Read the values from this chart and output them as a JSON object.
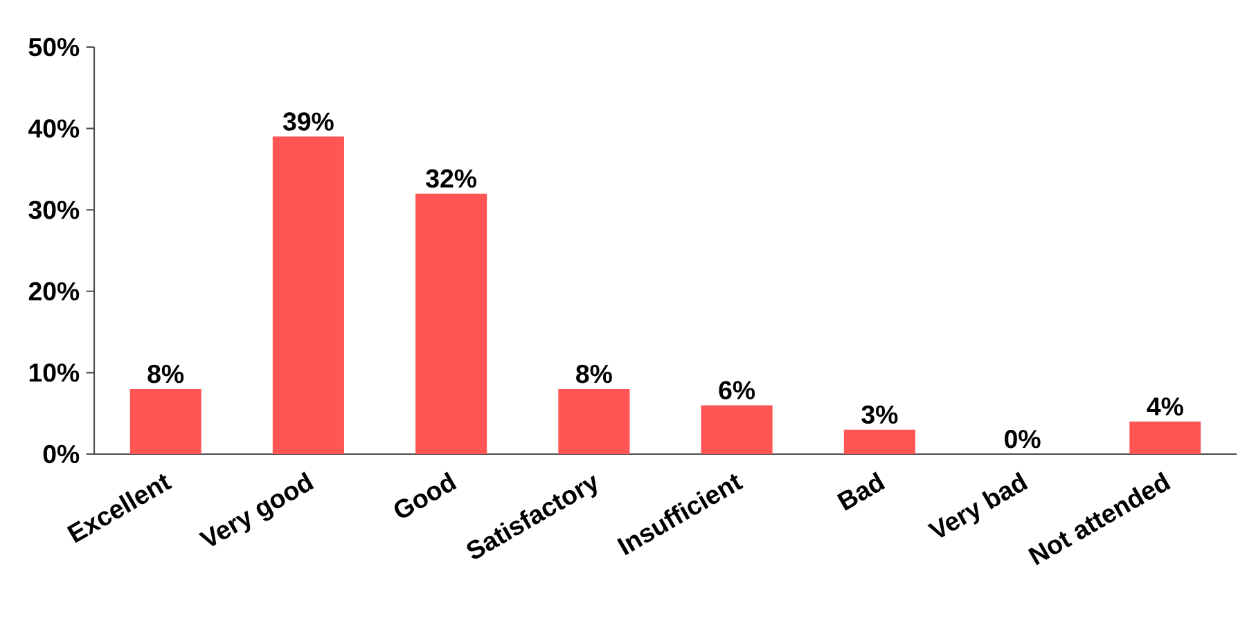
{
  "chart_data": {
    "type": "bar",
    "categories": [
      "Excellent",
      "Very good",
      "Good",
      "Satisfactory",
      "Insufficient",
      "Bad",
      "Very bad",
      "Not attended"
    ],
    "values": [
      8,
      39,
      32,
      8,
      6,
      3,
      0,
      4
    ],
    "color": "#ff5555",
    "value_labels": [
      "8%",
      "39%",
      "32%",
      "8%",
      "6%",
      "3%",
      "0%",
      "4%"
    ],
    "ylim": [
      0,
      50
    ],
    "yticks": [
      {
        "value": 0,
        "label": "0%"
      },
      {
        "value": 10,
        "label": "10%"
      },
      {
        "value": 20,
        "label": "20%"
      },
      {
        "value": 30,
        "label": "30%"
      },
      {
        "value": 40,
        "label": "40%"
      },
      {
        "value": 50,
        "label": "50%"
      }
    ],
    "grid": false
  }
}
